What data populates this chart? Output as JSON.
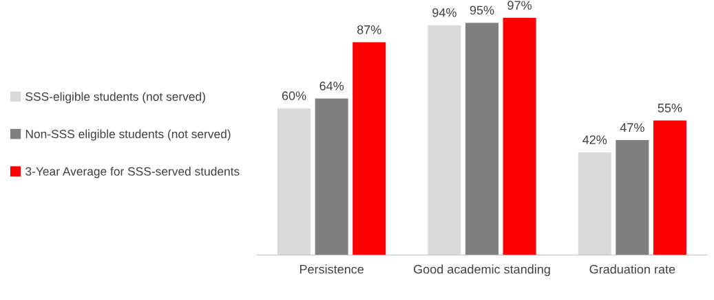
{
  "chart_data": {
    "type": "bar",
    "categories": [
      "Persistence",
      "Good academic standing",
      "Graduation rate"
    ],
    "series": [
      {
        "name": "SSS-eligible students (not served)",
        "color": "#d9d9d9",
        "values": [
          60,
          94,
          42
        ],
        "value_labels": [
          "60%",
          "94%",
          "42%"
        ]
      },
      {
        "name": "Non-SSS eligible students (not served)",
        "color": "#7f7f7f",
        "values": [
          64,
          95,
          47
        ],
        "value_labels": [
          "64%",
          "95%",
          "47%"
        ]
      },
      {
        "name": "3-Year Average for SSS-served students",
        "color": "#ff0000",
        "values": [
          87,
          97,
          55
        ],
        "value_labels": [
          "87%",
          "97%",
          "55%"
        ]
      }
    ],
    "legend": "left",
    "grid": false,
    "tick_labels": "x"
  }
}
